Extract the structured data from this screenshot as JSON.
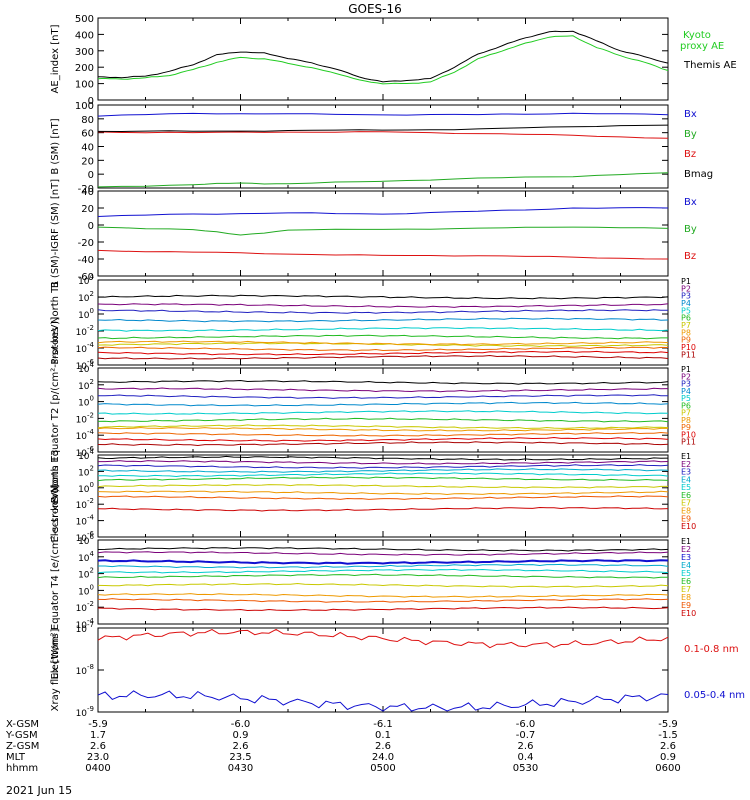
{
  "title": "GOES-16",
  "footer_date": "2021 Jun 15",
  "x_axis": {
    "rows": [
      {
        "label": "X-GSM",
        "values": [
          "-5.9",
          "-6.0",
          "-6.1",
          "-6.0",
          "-5.9"
        ]
      },
      {
        "label": "Y-GSM",
        "values": [
          "1.7",
          "0.9",
          "0.1",
          "-0.7",
          "-1.5"
        ]
      },
      {
        "label": "Z-GSM",
        "values": [
          "2.6",
          "2.6",
          "2.6",
          "2.6",
          "2.6"
        ]
      },
      {
        "label": "MLT",
        "values": [
          "23.0",
          "23.5",
          "24.0",
          "0.4",
          "0.9"
        ]
      },
      {
        "label": "hhmm",
        "values": [
          "0400",
          "0430",
          "0500",
          "0530",
          "0600"
        ]
      }
    ]
  },
  "chart_data": [
    {
      "type": "line",
      "ylabel": "AE_index [nT]",
      "ylim": [
        0,
        500
      ],
      "yticks": [
        "0",
        "100",
        "200",
        "300",
        "400",
        "500"
      ],
      "x_range_minutes": [
        0,
        120
      ],
      "series": [
        {
          "name": "Kyoto proxy AE",
          "color": "#22cc22",
          "x": [
            0,
            5,
            10,
            15,
            20,
            25,
            30,
            35,
            40,
            45,
            50,
            55,
            60,
            65,
            70,
            75,
            80,
            85,
            90,
            95,
            100,
            105,
            110,
            115,
            120
          ],
          "y": [
            130,
            128,
            135,
            150,
            185,
            230,
            260,
            250,
            225,
            195,
            165,
            120,
            100,
            100,
            110,
            170,
            250,
            300,
            345,
            385,
            390,
            320,
            270,
            230,
            180
          ]
        },
        {
          "name": "Themis AE",
          "color": "#000000",
          "x": [
            0,
            5,
            10,
            15,
            20,
            25,
            30,
            35,
            40,
            45,
            50,
            55,
            60,
            65,
            70,
            75,
            80,
            85,
            90,
            95,
            100,
            105,
            110,
            115,
            120
          ],
          "y": [
            140,
            138,
            145,
            175,
            215,
            275,
            295,
            285,
            255,
            225,
            190,
            140,
            110,
            120,
            130,
            200,
            280,
            330,
            380,
            415,
            420,
            360,
            300,
            265,
            225
          ]
        }
      ]
    },
    {
      "type": "line",
      "ylabel": "B (SM) [nT]",
      "ylim": [
        -20,
        100
      ],
      "yticks": [
        "-20",
        "0",
        "20",
        "40",
        "60",
        "80",
        "100"
      ],
      "series": [
        {
          "name": "Bx",
          "color": "#1010d0",
          "x": [
            0,
            20,
            40,
            60,
            80,
            100,
            120
          ],
          "y": [
            84,
            88,
            87,
            86,
            86,
            88,
            86
          ]
        },
        {
          "name": "By",
          "color": "#22aa22",
          "x": [
            0,
            20,
            30,
            40,
            60,
            80,
            100,
            120
          ],
          "y": [
            -19,
            -15,
            -13,
            -14,
            -10,
            -6,
            -3,
            2
          ]
        },
        {
          "name": "Bz",
          "color": "#dd1111",
          "x": [
            0,
            20,
            40,
            60,
            80,
            100,
            120
          ],
          "y": [
            61,
            60,
            61,
            61,
            59,
            56,
            52
          ]
        },
        {
          "name": "Bmag",
          "color": "#000000",
          "x": [
            0,
            20,
            40,
            60,
            80,
            100,
            120
          ],
          "y": [
            62,
            62,
            63,
            64,
            65,
            69,
            71
          ]
        }
      ]
    },
    {
      "type": "line",
      "ylabel": "B (SM)-IGRF (SM) [nT]",
      "ylim": [
        -60,
        40
      ],
      "yticks": [
        "-60",
        "-40",
        "-20",
        "0",
        "20",
        "40"
      ],
      "series": [
        {
          "name": "Bx",
          "color": "#1010d0",
          "x": [
            0,
            20,
            40,
            60,
            80,
            100,
            120
          ],
          "y": [
            10,
            13,
            14,
            13,
            16,
            20,
            20
          ]
        },
        {
          "name": "By",
          "color": "#22aa22",
          "x": [
            0,
            20,
            30,
            40,
            60,
            80,
            100,
            120
          ],
          "y": [
            -3,
            -5,
            -12,
            -6,
            -5,
            -4,
            -2,
            -4
          ]
        },
        {
          "name": "Bz",
          "color": "#dd1111",
          "x": [
            0,
            20,
            40,
            60,
            80,
            100,
            120
          ],
          "y": [
            -30,
            -32,
            -34,
            -36,
            -36,
            -38,
            -40
          ]
        }
      ]
    },
    {
      "type": "line",
      "ylabel": "Protons North T1",
      "scale": "log",
      "ylim_exp": [
        -6,
        4
      ],
      "yticks": [
        "10^-6",
        "10^-4",
        "10^-2",
        "10^0",
        "10^2",
        "10^4"
      ],
      "series": [
        {
          "name": "P1",
          "color": "#000000",
          "log_y": 2.0
        },
        {
          "name": "P2",
          "color": "#7a007a",
          "log_y": 1.0
        },
        {
          "name": "P3",
          "color": "#2020c0",
          "log_y": 0.3
        },
        {
          "name": "P4",
          "color": "#0088cc",
          "log_y": -0.7
        },
        {
          "name": "P5",
          "color": "#00cccc",
          "log_y": -1.8
        },
        {
          "name": "P6",
          "color": "#22bb22",
          "log_y": -2.7
        },
        {
          "name": "P7",
          "color": "#c8c800",
          "log_y": -3.6
        },
        {
          "name": "P8",
          "color": "#ee9900",
          "log_y": -3.4
        },
        {
          "name": "P9",
          "color": "#ee6600",
          "log_y": -4.1
        },
        {
          "name": "P10",
          "color": "#dd0000",
          "log_y": -4.6
        },
        {
          "name": "P11",
          "color": "#aa0000",
          "log_y": -5.1
        }
      ]
    },
    {
      "type": "line",
      "ylabel": "Protons Equator T2 [p/(cm²-s-sr-keV)]",
      "scale": "log",
      "ylim_exp": [
        -6,
        4
      ],
      "yticks": [
        "10^-6",
        "10^-4",
        "10^-2",
        "10^0",
        "10^2",
        "10^4"
      ],
      "series": [
        {
          "name": "P1",
          "color": "#000000",
          "log_y": 2.3
        },
        {
          "name": "P2",
          "color": "#7a007a",
          "log_y": 1.4
        },
        {
          "name": "P3",
          "color": "#2020c0",
          "log_y": 0.6
        },
        {
          "name": "P4",
          "color": "#0088cc",
          "log_y": -0.3
        },
        {
          "name": "P5",
          "color": "#00cccc",
          "log_y": -1.3
        },
        {
          "name": "P6",
          "color": "#22bb22",
          "log_y": -2.2
        },
        {
          "name": "P7",
          "color": "#c8c800",
          "log_y": -3.0
        },
        {
          "name": "P8",
          "color": "#ee9900",
          "log_y": -3.3
        },
        {
          "name": "P9",
          "color": "#ee6600",
          "log_y": -3.9
        },
        {
          "name": "P10",
          "color": "#dd0000",
          "log_y": -4.5
        },
        {
          "name": "P11",
          "color": "#aa0000",
          "log_y": -5.0
        }
      ]
    },
    {
      "type": "line",
      "ylabel": "Electrons North T3",
      "scale": "log",
      "ylim_exp": [
        -6,
        4
      ],
      "yticks": [
        "10^-6",
        "10^-4",
        "10^-2",
        "10^0",
        "10^2",
        "10^4"
      ],
      "series": [
        {
          "name": "E1",
          "color": "#000000",
          "log_y": 3.6
        },
        {
          "name": "E2",
          "color": "#7a007a",
          "log_y": 3.1
        },
        {
          "name": "E3",
          "color": "#2020c0",
          "log_y": 2.6
        },
        {
          "name": "E4",
          "color": "#00aacc",
          "log_y": 2.1
        },
        {
          "name": "E5",
          "color": "#00cccc",
          "log_y": 1.6
        },
        {
          "name": "E6",
          "color": "#22bb22",
          "log_y": 1.1
        },
        {
          "name": "E7",
          "color": "#c8c800",
          "log_y": 0.2
        },
        {
          "name": "E8",
          "color": "#ee9900",
          "log_y": -0.6
        },
        {
          "name": "E9",
          "color": "#ee5500",
          "log_y": -1.2
        },
        {
          "name": "E10",
          "color": "#cc0000",
          "log_y": -2.6
        }
      ]
    },
    {
      "type": "line",
      "ylabel": "Electrons Equator T4 [e/(cm²-s-sr-keV)]",
      "scale": "log",
      "ylim_exp": [
        -4,
        6
      ],
      "yticks": [
        "10^-4",
        "10^-2",
        "10^0",
        "10^2",
        "10^4",
        "10^6"
      ],
      "series": [
        {
          "name": "E1",
          "color": "#000000",
          "log_y": 4.9
        },
        {
          "name": "E2",
          "color": "#7a007a",
          "log_y": 4.4
        },
        {
          "name": "E3",
          "color": "#1010d0",
          "log_y": 3.4
        },
        {
          "name": "E4",
          "color": "#00aacc",
          "log_y": 2.9
        },
        {
          "name": "E5",
          "color": "#00cccc",
          "log_y": 2.3
        },
        {
          "name": "E6",
          "color": "#22bb22",
          "log_y": 1.7
        },
        {
          "name": "E7",
          "color": "#c8c800",
          "log_y": 0.6
        },
        {
          "name": "E8",
          "color": "#ee9900",
          "log_y": -0.6
        },
        {
          "name": "E9",
          "color": "#ee5500",
          "log_y": -1.2
        },
        {
          "name": "E10",
          "color": "#cc0000",
          "log_y": -2.2
        }
      ]
    },
    {
      "type": "line",
      "ylabel": "Xray flux [W/m²]",
      "scale": "log",
      "ylim_exp": [
        -9,
        -7
      ],
      "yticks": [
        "10^-9",
        "10^-8",
        "10^-7"
      ],
      "series": [
        {
          "name": "0.1-0.8 nm",
          "color": "#dd1111",
          "log_y": -7.25
        },
        {
          "name": "0.05-0.4 nm",
          "color": "#1010d0",
          "log_y": -8.75
        }
      ]
    }
  ]
}
